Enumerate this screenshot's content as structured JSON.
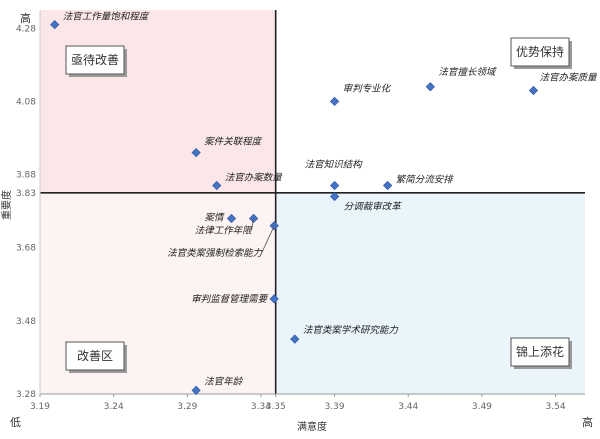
{
  "chart_data": {
    "type": "scatter",
    "xlabel": "满意度",
    "ylabel": "重要度",
    "x_low_label": "低",
    "x_high_label": "高",
    "y_high_label": "高",
    "xlim": [
      3.19,
      3.56
    ],
    "ylim": [
      3.28,
      4.33
    ],
    "xticks": [
      "3.19",
      "3.24",
      "3.29",
      "3.34",
      "3.35",
      "3.39",
      "3.44",
      "3.49",
      "3.54"
    ],
    "yticks": [
      "3.28",
      "3.48",
      "3.68",
      "3.83",
      "3.88",
      "4.08",
      "4.28"
    ],
    "x_split": 3.35,
    "y_split": 3.83,
    "quadrants": {
      "top_left": "亟待改善",
      "top_right": "优势保持",
      "bottom_left": "改善区",
      "bottom_right": "锦上添花"
    },
    "quadrant_colors": {
      "top_left": "#fbe6e8",
      "top_right": "#ffffff",
      "bottom_left": "#fdf3f3",
      "bottom_right": "#e9f4fb"
    },
    "marker_color": "#4472c4",
    "points": [
      {
        "label": "法官工作量饱和程度",
        "x": 3.2,
        "y": 4.29
      },
      {
        "label": "法官擅长领域",
        "x": 3.455,
        "y": 4.12
      },
      {
        "label": "法官办案质量",
        "x": 3.525,
        "y": 4.11
      },
      {
        "label": "审判专业化",
        "x": 3.39,
        "y": 4.08
      },
      {
        "label": "案件关联程度",
        "x": 3.296,
        "y": 3.94
      },
      {
        "label": "法官知识结构",
        "x": 3.39,
        "y": 3.85
      },
      {
        "label": "法官办案数量",
        "x": 3.31,
        "y": 3.85
      },
      {
        "label": "繁简分流安排",
        "x": 3.426,
        "y": 3.85
      },
      {
        "label": "分调裁审改革",
        "x": 3.39,
        "y": 3.82
      },
      {
        "label": "案情",
        "x": 3.32,
        "y": 3.76
      },
      {
        "label": "法律工作年限",
        "x": 3.335,
        "y": 3.76
      },
      {
        "label": "法官类案强制检索能力",
        "x": 3.349,
        "y": 3.74
      },
      {
        "label": "审判监督管理需要",
        "x": 3.349,
        "y": 3.54
      },
      {
        "label": "法官类案学术研究能力",
        "x": 3.363,
        "y": 3.43
      },
      {
        "label": "法官年龄",
        "x": 3.296,
        "y": 3.29
      }
    ]
  }
}
